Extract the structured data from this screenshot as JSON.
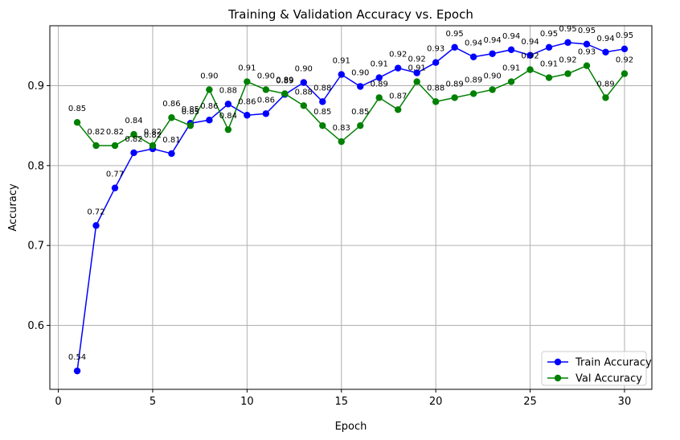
{
  "chart_data": {
    "type": "line",
    "title": "Training & Validation Accuracy vs. Epoch",
    "xlabel": "Epoch",
    "ylabel": "Accuracy",
    "xlim": [
      -0.45,
      31.45
    ],
    "ylim": [
      0.52,
      0.975
    ],
    "xticks": [
      0,
      5,
      10,
      15,
      20,
      25,
      30
    ],
    "yticks": [
      0.6,
      0.7,
      0.8,
      0.9
    ],
    "xtick_labels": [
      "0",
      "5",
      "10",
      "15",
      "20",
      "25",
      "30"
    ],
    "ytick_labels": [
      "0.6",
      "0.7",
      "0.8",
      "0.9"
    ],
    "grid": true,
    "legend_position": "bottom-right",
    "x": [
      1,
      2,
      3,
      4,
      5,
      6,
      7,
      8,
      9,
      10,
      11,
      12,
      13,
      14,
      15,
      16,
      17,
      18,
      19,
      20,
      21,
      22,
      23,
      24,
      25,
      26,
      27,
      28,
      29,
      30
    ],
    "series": [
      {
        "name": "Train Accuracy",
        "color": "#0000ff",
        "marker": "circle",
        "values": [
          0.543,
          0.725,
          0.772,
          0.816,
          0.821,
          0.815,
          0.853,
          0.857,
          0.877,
          0.863,
          0.865,
          0.889,
          0.904,
          0.88,
          0.914,
          0.899,
          0.91,
          0.922,
          0.916,
          0.929,
          0.948,
          0.936,
          0.94,
          0.945,
          0.938,
          0.948,
          0.954,
          0.952,
          0.942,
          0.946
        ],
        "labels": [
          "0.54",
          "0.72",
          "0.77",
          "0.82",
          "0.82",
          "0.81",
          "0.85",
          "0.86",
          "0.88",
          "0.86",
          "0.86",
          "0.89",
          "0.90",
          "0.88",
          "0.91",
          "0.90",
          "0.91",
          "0.92",
          "0.92",
          "0.93",
          "0.95",
          "0.94",
          "0.94",
          "0.94",
          "0.94",
          "0.95",
          "0.95",
          "0.95",
          "0.94",
          "0.95"
        ]
      },
      {
        "name": "Val Accuracy",
        "color": "#008000",
        "marker": "circle",
        "values": [
          0.854,
          0.825,
          0.825,
          0.839,
          0.825,
          0.86,
          0.85,
          0.895,
          0.845,
          0.905,
          0.895,
          0.89,
          0.875,
          0.85,
          0.83,
          0.85,
          0.885,
          0.87,
          0.905,
          0.88,
          0.885,
          0.89,
          0.895,
          0.905,
          0.92,
          0.91,
          0.915,
          0.925,
          0.885,
          0.915
        ],
        "labels": [
          "0.85",
          "0.82",
          "0.82",
          "0.84",
          "0.82",
          "0.86",
          "0.85",
          "0.90",
          "0.84",
          "0.91",
          "0.90",
          "0.89",
          "0.88",
          "0.85",
          "0.83",
          "0.85",
          "0.89",
          "0.87",
          "0.91",
          "0.88",
          "0.89",
          "0.89",
          "0.90",
          "0.91",
          "0.92",
          "0.91",
          "0.92",
          "0.93",
          "0.89",
          "0.92"
        ]
      }
    ]
  }
}
